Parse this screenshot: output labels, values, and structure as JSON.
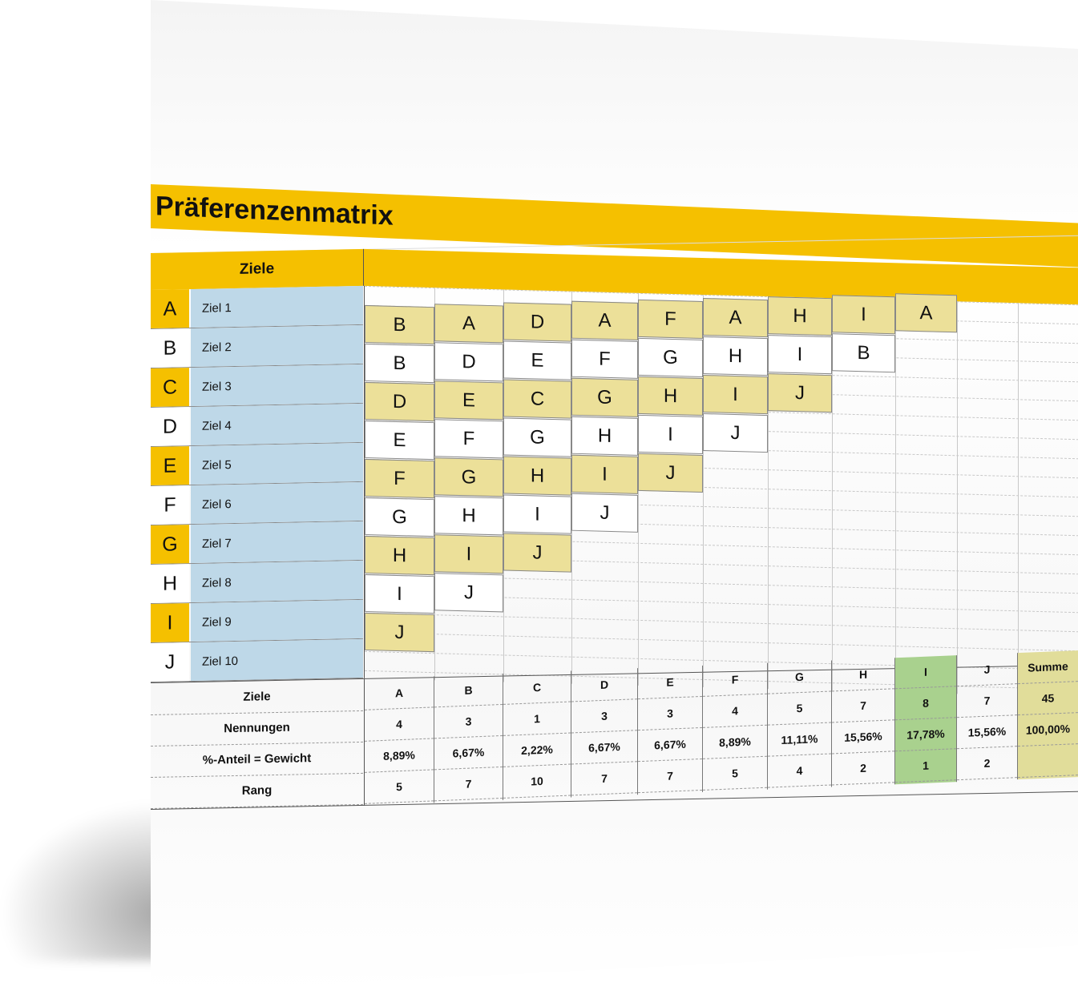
{
  "title": "Präferenzenmatrix",
  "header": {
    "ziele": "Ziele"
  },
  "goals": [
    {
      "letter": "A",
      "label": "Ziel 1"
    },
    {
      "letter": "B",
      "label": "Ziel 2"
    },
    {
      "letter": "C",
      "label": "Ziel 3"
    },
    {
      "letter": "D",
      "label": "Ziel 4"
    },
    {
      "letter": "E",
      "label": "Ziel 5"
    },
    {
      "letter": "F",
      "label": "Ziel 6"
    },
    {
      "letter": "G",
      "label": "Ziel 7"
    },
    {
      "letter": "H",
      "label": "Ziel 8"
    },
    {
      "letter": "I",
      "label": "Ziel 9"
    },
    {
      "letter": "J",
      "label": "Ziel 10"
    }
  ],
  "colors": {
    "accent": "#f5c000",
    "goal_label_bg": "#bed8e8",
    "cell_yellow": "#ece099",
    "highlight_green": "#a9d18e",
    "sum_bg": "#e1dd9a"
  },
  "matrix": [
    [
      "B",
      "B",
      "D",
      "E",
      "F",
      "G",
      "H",
      "I",
      "J"
    ],
    [
      "A",
      "D",
      "E",
      "F",
      "G",
      "H",
      "I",
      "J"
    ],
    [
      "D",
      "E",
      "C",
      "G",
      "H",
      "I",
      "J"
    ],
    [
      "A",
      "F",
      "G",
      "H",
      "I",
      "J"
    ],
    [
      "F",
      "G",
      "H",
      "I",
      "J"
    ],
    [
      "A",
      "H",
      "I",
      "J"
    ],
    [
      "H",
      "I",
      "J"
    ],
    [
      "I",
      "B"
    ],
    [
      "A"
    ]
  ],
  "summary": {
    "row_labels": [
      "Ziele",
      "Nennungen",
      "%-Anteil = Gewicht",
      "Rang"
    ],
    "columns": [
      {
        "ziel": "A",
        "nennungen": "4",
        "anteil": "8,89%",
        "rang": "5"
      },
      {
        "ziel": "B",
        "nennungen": "3",
        "anteil": "6,67%",
        "rang": "7"
      },
      {
        "ziel": "C",
        "nennungen": "1",
        "anteil": "2,22%",
        "rang": "10"
      },
      {
        "ziel": "D",
        "nennungen": "3",
        "anteil": "6,67%",
        "rang": "7"
      },
      {
        "ziel": "E",
        "nennungen": "3",
        "anteil": "6,67%",
        "rang": "7"
      },
      {
        "ziel": "F",
        "nennungen": "4",
        "anteil": "8,89%",
        "rang": "5"
      },
      {
        "ziel": "G",
        "nennungen": "5",
        "anteil": "11,11%",
        "rang": "4"
      },
      {
        "ziel": "H",
        "nennungen": "7",
        "anteil": "15,56%",
        "rang": "2"
      },
      {
        "ziel": "I",
        "nennungen": "8",
        "anteil": "17,78%",
        "rang": "1"
      },
      {
        "ziel": "J",
        "nennungen": "7",
        "anteil": "15,56%",
        "rang": "2"
      }
    ],
    "sum": {
      "label": "Summe",
      "nennungen": "45",
      "anteil": "100,00%",
      "rang": ""
    },
    "highlight_column": "I"
  }
}
